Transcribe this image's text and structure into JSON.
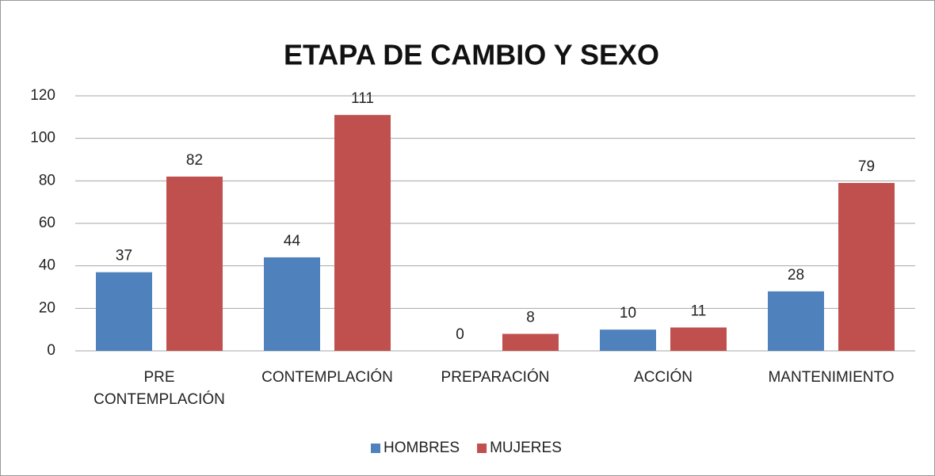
{
  "chart_data": {
    "type": "bar",
    "title": "ETAPA DE CAMBIO Y SEXO",
    "categories": [
      "PRE CONTEMPLACIÓN",
      "CONTEMPLACIÓN",
      "PREPARACIÓN",
      "ACCIÓN",
      "MANTENIMIENTO"
    ],
    "series": [
      {
        "name": "HOMBRES",
        "color": "#4f81bd",
        "values": [
          37,
          44,
          0,
          10,
          28
        ]
      },
      {
        "name": "MUJERES",
        "color": "#c0504d",
        "values": [
          82,
          111,
          8,
          11,
          79
        ]
      }
    ],
    "ylim": [
      0,
      120
    ],
    "yticks": [
      0,
      20,
      40,
      60,
      80,
      100,
      120
    ],
    "grid": true,
    "legend": "bottom"
  }
}
